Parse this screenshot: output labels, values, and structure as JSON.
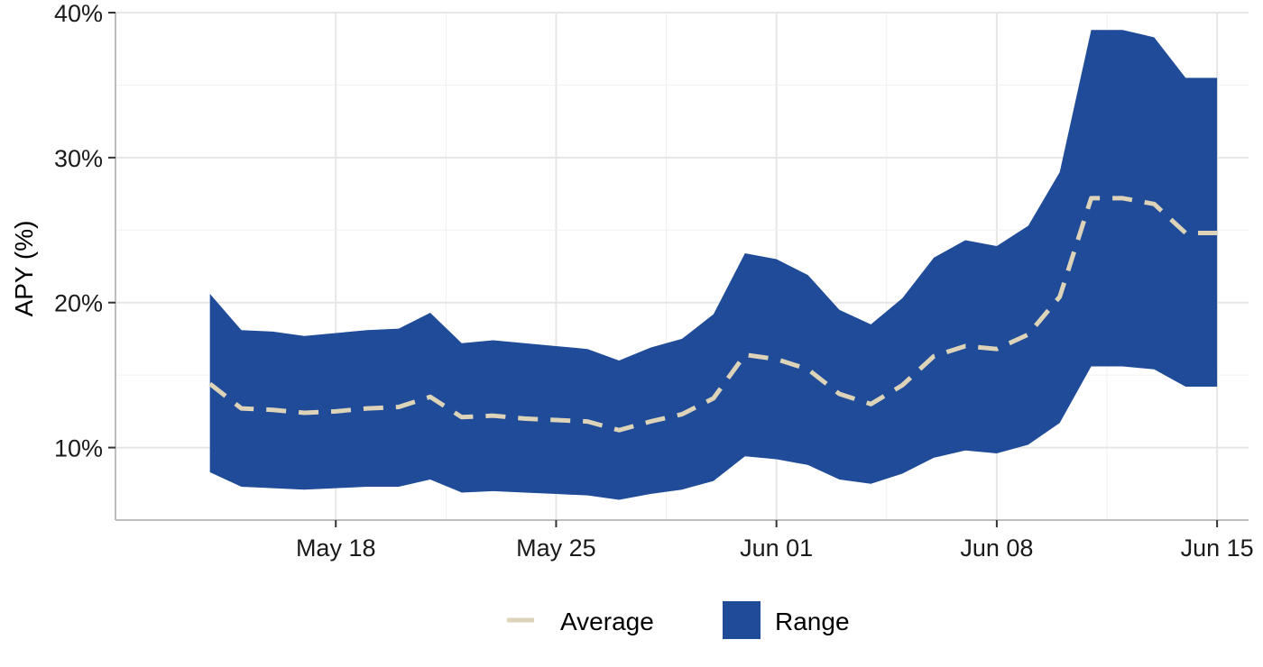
{
  "colors": {
    "range_fill": "#1f4b99",
    "average_line": "#ddd3b8",
    "grid": "#e6e6e6",
    "axis": "#bdbdbd"
  },
  "legend": {
    "average_label": "Average",
    "range_label": "Range"
  },
  "chart_data": {
    "type": "area",
    "title": "",
    "xlabel": "",
    "ylabel": "APY (%)",
    "x": [
      "2021-05-14",
      "2021-05-15",
      "2021-05-16",
      "2021-05-17",
      "2021-05-18",
      "2021-05-19",
      "2021-05-20",
      "2021-05-21",
      "2021-05-22",
      "2021-05-23",
      "2021-05-24",
      "2021-05-25",
      "2021-05-26",
      "2021-05-27",
      "2021-05-28",
      "2021-05-29",
      "2021-05-30",
      "2021-05-31",
      "2021-06-01",
      "2021-06-02",
      "2021-06-03",
      "2021-06-04",
      "2021-06-05",
      "2021-06-06",
      "2021-06-07",
      "2021-06-08",
      "2021-06-09",
      "2021-06-10",
      "2021-06-11",
      "2021-06-12",
      "2021-06-13",
      "2021-06-14",
      "2021-06-15"
    ],
    "series": [
      {
        "name": "Range",
        "kind": "ribbon",
        "upper": [
          20.6,
          18.1,
          18.0,
          17.7,
          17.9,
          18.1,
          18.2,
          19.3,
          17.2,
          17.4,
          17.2,
          17.0,
          16.8,
          16.0,
          16.9,
          17.5,
          19.2,
          23.4,
          23.0,
          21.9,
          19.5,
          18.5,
          20.3,
          23.1,
          24.3,
          23.9,
          25.3,
          29.0,
          38.8,
          38.8,
          38.3,
          35.5,
          35.5
        ],
        "lower": [
          8.3,
          7.3,
          7.2,
          7.1,
          7.2,
          7.3,
          7.3,
          7.8,
          6.9,
          7.0,
          6.9,
          6.8,
          6.7,
          6.4,
          6.8,
          7.1,
          7.7,
          9.4,
          9.2,
          8.8,
          7.8,
          7.5,
          8.2,
          9.3,
          9.8,
          9.6,
          10.2,
          11.7,
          15.6,
          15.6,
          15.4,
          14.2,
          14.2
        ]
      },
      {
        "name": "Average",
        "kind": "line",
        "values": [
          14.4,
          12.7,
          12.6,
          12.4,
          12.5,
          12.7,
          12.8,
          13.5,
          12.1,
          12.2,
          12.0,
          11.9,
          11.8,
          11.2,
          11.8,
          12.3,
          13.4,
          16.4,
          16.1,
          15.4,
          13.7,
          13.0,
          14.3,
          16.3,
          17.0,
          16.8,
          17.8,
          20.4,
          27.2,
          27.2,
          26.8,
          24.8,
          24.8
        ]
      }
    ],
    "x_ticks": [
      "2021-05-18",
      "2021-05-25",
      "2021-06-01",
      "2021-06-08",
      "2021-06-15"
    ],
    "x_tick_labels": [
      "May 18",
      "May 25",
      "Jun 01",
      "Jun 08",
      "Jun 15"
    ],
    "y_ticks": [
      10,
      20,
      30,
      40
    ],
    "y_tick_labels": [
      "10%",
      "20%",
      "30%",
      "40%"
    ],
    "ylim": [
      5,
      40
    ],
    "xlim": [
      "2021-05-11",
      "2021-06-16"
    ],
    "grid": true,
    "legend_position": "bottom"
  }
}
